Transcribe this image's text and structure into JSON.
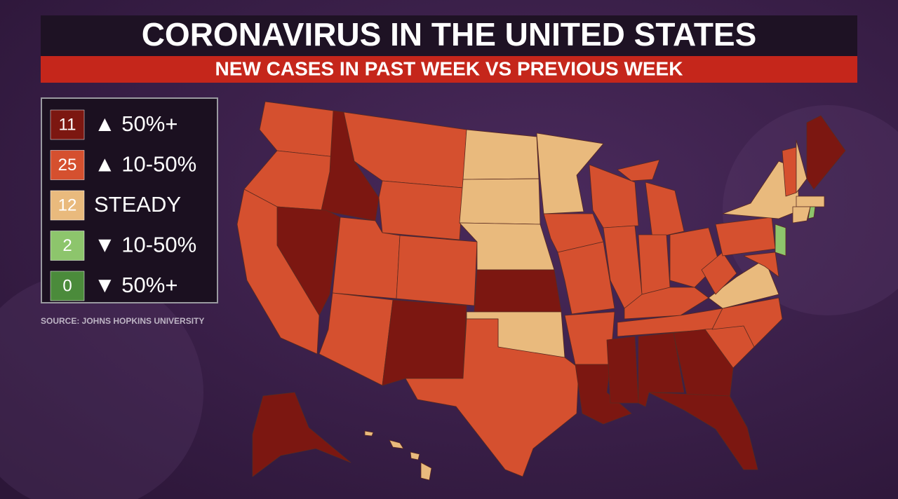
{
  "header": {
    "title": "CORONAVIRUS IN THE UNITED STATES",
    "subtitle": "NEW CASES IN PAST WEEK VS PREVIOUS WEEK"
  },
  "legend": [
    {
      "count": 11,
      "label": "▲ 50%+",
      "color": "#7c1711"
    },
    {
      "count": 25,
      "label": "▲ 10-50%",
      "color": "#d5502f"
    },
    {
      "count": 12,
      "label": "STEADY",
      "color": "#e9ba7d"
    },
    {
      "count": 2,
      "label": "▼ 10-50%",
      "color": "#8dc56c"
    },
    {
      "count": 0,
      "label": "▼ 50%+",
      "color": "#4b8b3b"
    }
  ],
  "source": "SOURCE: JOHNS HOPKINS UNIVERSITY"
}
